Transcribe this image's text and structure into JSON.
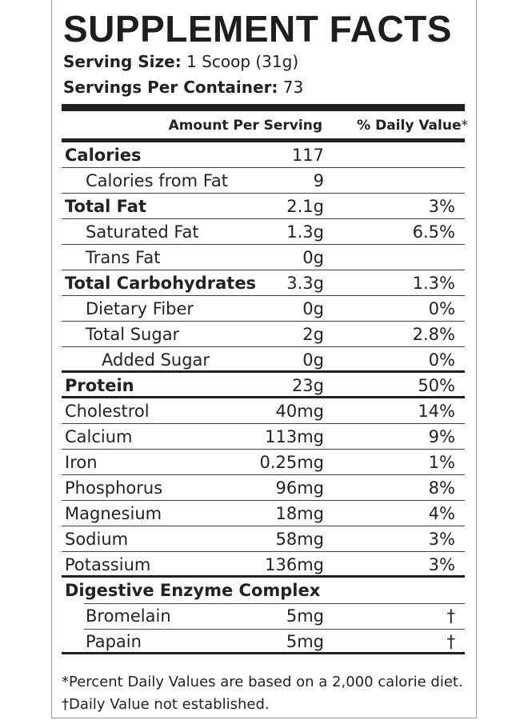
{
  "title": "SUPPLEMENT FACTS",
  "serving_size_label": "Serving Size:",
  "serving_size_value": "1 Scoop (31g)",
  "servings_per_container_label": "Servings Per Container:",
  "servings_per_container_value": "73",
  "header": {
    "amount": "Amount Per Serving",
    "dv": "% Daily Value",
    "dv_mark": "*"
  },
  "rows": [
    {
      "name": "Calories",
      "amount": "117",
      "dv": ""
    },
    {
      "name": "Calories from Fat",
      "amount": "9",
      "dv": ""
    },
    {
      "name": "Total Fat",
      "amount": "2.1g",
      "dv": "3%"
    },
    {
      "name": "Saturated Fat",
      "amount": "1.3g",
      "dv": "6.5%"
    },
    {
      "name": "Trans Fat",
      "amount": "0g",
      "dv": ""
    },
    {
      "name": "Total Carbohydrates",
      "amount": "3.3g",
      "dv": "1.3%"
    },
    {
      "name": "Dietary Fiber",
      "amount": "0g",
      "dv": "0%"
    },
    {
      "name": "Total Sugar",
      "amount": "2g",
      "dv": "2.8%"
    },
    {
      "name": "Added Sugar",
      "amount": "0g",
      "dv": "0%"
    },
    {
      "name": "Protein",
      "amount": "23g",
      "dv": "50%"
    },
    {
      "name": "Cholestrol",
      "amount": "40mg",
      "dv": "14%"
    },
    {
      "name": "Calcium",
      "amount": "113mg",
      "dv": "9%"
    },
    {
      "name": "Iron",
      "amount": "0.25mg",
      "dv": "1%"
    },
    {
      "name": "Phosphorus",
      "amount": "96mg",
      "dv": "8%"
    },
    {
      "name": "Magnesium",
      "amount": "18mg",
      "dv": "4%"
    },
    {
      "name": "Sodium",
      "amount": "58mg",
      "dv": "3%"
    },
    {
      "name": "Potassium",
      "amount": "136mg",
      "dv": "3%"
    },
    {
      "name": "Digestive Enzyme Complex",
      "amount": "",
      "dv": ""
    },
    {
      "name": "Bromelain",
      "amount": "5mg",
      "dv": "†"
    },
    {
      "name": "Papain",
      "amount": "5mg",
      "dv": "†"
    }
  ],
  "footnote_1": "*Percent Daily Values are based on a 2,000 calorie diet.",
  "footnote_2": "†Daily Value not established."
}
